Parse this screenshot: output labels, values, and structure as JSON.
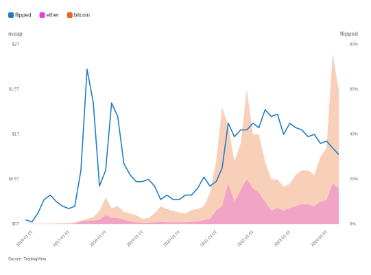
{
  "chart_data": {
    "type": "area-line",
    "y_axis_label": "mcap",
    "y2_axis_label": "flipped",
    "source": "Source: TradingView",
    "x": [
      "2015-11-01",
      "2016-01-01",
      "2016-03-01",
      "2016-05-01",
      "2016-07-01",
      "2016-09-01",
      "2016-11-01",
      "2017-01-01",
      "2017-03-01",
      "2017-05-01",
      "2017-07-01",
      "2017-09-01",
      "2017-11-01",
      "2018-01-01",
      "2018-03-01",
      "2018-05-01",
      "2018-07-01",
      "2018-09-01",
      "2018-11-01",
      "2019-01-01",
      "2019-03-01",
      "2019-05-01",
      "2019-07-01",
      "2019-09-01",
      "2019-11-01",
      "2020-01-01",
      "2020-03-01",
      "2020-05-01",
      "2020-07-01",
      "2020-09-01",
      "2020-11-01",
      "2021-01-01",
      "2021-03-01",
      "2021-05-01",
      "2021-07-01",
      "2021-09-01",
      "2021-11-01",
      "2022-01-01",
      "2022-03-01",
      "2022-05-01",
      "2022-07-01",
      "2022-09-01",
      "2022-11-01",
      "2023-01-01",
      "2023-03-01",
      "2023-05-01",
      "2023-07-01",
      "2023-09-01",
      "2023-11-01",
      "2024-01-01",
      "2024-03-01",
      "2024-05-01"
    ],
    "series": [
      {
        "name": "flipped",
        "color": "#1f7cc4",
        "axis": "y2",
        "kind": "line",
        "values": [
          2,
          1,
          5,
          11,
          13,
          10,
          8,
          7,
          8,
          24,
          69,
          54,
          17,
          24,
          54,
          48,
          27,
          22,
          19,
          19,
          20,
          17,
          11,
          13,
          11,
          11,
          13,
          13,
          16,
          21,
          17,
          19,
          25,
          45,
          39,
          42,
          42,
          45,
          43,
          51,
          48,
          49,
          40,
          45,
          43,
          42,
          39,
          40,
          36,
          37,
          34,
          31
        ]
      },
      {
        "name": "ether",
        "color": "#e23fe0",
        "kind": "area",
        "values": [
          0,
          0,
          0,
          0,
          0,
          0,
          0,
          0,
          0.005,
          0.03,
          0.04,
          0.04,
          0.05,
          0.1,
          0.07,
          0.07,
          0.05,
          0.03,
          0.02,
          0.015,
          0.015,
          0.02,
          0.025,
          0.02,
          0.02,
          0.02,
          0.02,
          0.025,
          0.03,
          0.045,
          0.06,
          0.15,
          0.2,
          0.45,
          0.25,
          0.38,
          0.5,
          0.4,
          0.35,
          0.25,
          0.15,
          0.18,
          0.15,
          0.18,
          0.2,
          0.22,
          0.22,
          0.2,
          0.25,
          0.27,
          0.45,
          0.4
        ]
      },
      {
        "name": "bitcoin",
        "color": "#e8641b",
        "kind": "area",
        "values": [
          0.005,
          0.006,
          0.007,
          0.008,
          0.01,
          0.01,
          0.012,
          0.015,
          0.02,
          0.04,
          0.06,
          0.08,
          0.15,
          0.3,
          0.18,
          0.2,
          0.14,
          0.12,
          0.1,
          0.06,
          0.07,
          0.12,
          0.2,
          0.17,
          0.15,
          0.13,
          0.12,
          0.16,
          0.17,
          0.2,
          0.35,
          0.7,
          1.3,
          1.1,
          0.7,
          0.9,
          1.5,
          1.0,
          1.0,
          0.7,
          0.5,
          0.5,
          0.42,
          0.45,
          0.55,
          0.6,
          0.6,
          0.55,
          0.75,
          0.85,
          1.9,
          1.5
        ]
      }
    ],
    "xlim": [
      "2015-10-01",
      "2024-07-01"
    ],
    "xticks": [
      "2016-01-01",
      "2017-01-01",
      "2018-01-01",
      "2019-01-01",
      "2020-01-01",
      "2021-01-01",
      "2022-01-01",
      "2023-01-01",
      "2024-01-01"
    ],
    "ylim": [
      0,
      2
    ],
    "yticks": [
      {
        "value": 0,
        "label": "$0T"
      },
      {
        "value": 0.5,
        "label": "$0.5T"
      },
      {
        "value": 1,
        "label": "$1T"
      },
      {
        "value": 1.5,
        "label": "$1.5T"
      },
      {
        "value": 2,
        "label": "$2T"
      }
    ],
    "y2lim": [
      0,
      80
    ],
    "y2ticks": [
      {
        "value": 0,
        "label": "0%"
      },
      {
        "value": 20,
        "label": "20%"
      },
      {
        "value": 40,
        "label": "40%"
      },
      {
        "value": 60,
        "label": "60%"
      },
      {
        "value": 80,
        "label": "80%"
      }
    ],
    "area_opacity": 0.3
  }
}
